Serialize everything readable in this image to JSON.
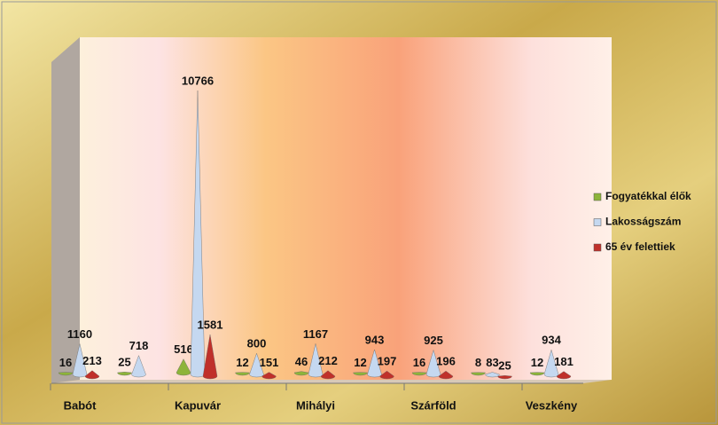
{
  "chart_data": {
    "type": "cone",
    "categories": [
      "Babót",
      null,
      "Kapuvár",
      null,
      "Mihályi",
      null,
      "Szárföld",
      null,
      "Veszkény"
    ],
    "series": [
      {
        "name": "Fogyatékkal élők",
        "color": "#8db43a",
        "values": [
          16,
          25,
          516,
          12,
          46,
          12,
          16,
          8,
          12
        ]
      },
      {
        "name": "Lakosságszám",
        "color": "#c5d8f0",
        "values": [
          1160,
          718,
          10766,
          800,
          1167,
          943,
          925,
          83,
          934
        ]
      },
      {
        "name": "65 év felettiek",
        "color": "#c0302a",
        "values": [
          213,
          null,
          1581,
          151,
          212,
          197,
          196,
          25,
          181
        ]
      }
    ],
    "legend": "right"
  }
}
